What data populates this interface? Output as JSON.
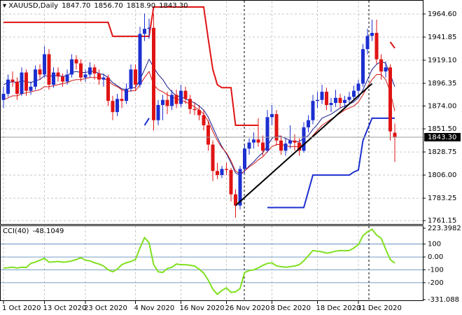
{
  "chart_data": {
    "type": "candlestick",
    "title": "XAUUSD,Daily",
    "header_values": [
      "1847.70",
      "1856.70",
      "1818.90",
      "1843.30"
    ],
    "categories": [
      "1 Oct 2020",
      null,
      null,
      null,
      null,
      null,
      null,
      null,
      null,
      "13 Oct 2020",
      null,
      null,
      null,
      null,
      null,
      null,
      null,
      null,
      "23 Oct 2020",
      null,
      null,
      null,
      null,
      null,
      null,
      null,
      null,
      null,
      null,
      "4 Nov 2020",
      null,
      null,
      null,
      null,
      null,
      null,
      null,
      null,
      null,
      "16 Nov 2020",
      null,
      null,
      null,
      null,
      null,
      null,
      null,
      null,
      null,
      "26 Nov 2020",
      null,
      null,
      null,
      null,
      null,
      null,
      null,
      null,
      null,
      "8 Dec 2020",
      null,
      null,
      null,
      null,
      null,
      null,
      null,
      null,
      null,
      "18 Dec 2020",
      null,
      null,
      null,
      null,
      null,
      null,
      null,
      null,
      "31 Dec 2020",
      null,
      null,
      null,
      null,
      null,
      null,
      null,
      null
    ],
    "ohlc": [
      [
        1880,
        1893,
        1872,
        1886
      ],
      [
        1886,
        1905,
        1883,
        1900
      ],
      [
        1900,
        1908,
        1893,
        1898
      ],
      [
        1898,
        1902,
        1880,
        1886
      ],
      [
        1886,
        1912,
        1884,
        1907
      ],
      [
        1907,
        1910,
        1884,
        1889
      ],
      [
        1889,
        1898,
        1885,
        1893
      ],
      [
        1893,
        1914,
        1890,
        1910
      ],
      [
        1910,
        1915,
        1900,
        1905
      ],
      [
        1905,
        1933,
        1902,
        1925
      ],
      [
        1925,
        1930,
        1890,
        1895
      ],
      [
        1895,
        1912,
        1892,
        1907
      ],
      [
        1907,
        1912,
        1898,
        1903
      ],
      [
        1903,
        1906,
        1893,
        1898
      ],
      [
        1898,
        1910,
        1895,
        1905
      ],
      [
        1905,
        1925,
        1902,
        1920
      ],
      [
        1920,
        1924,
        1910,
        1916
      ],
      [
        1916,
        1920,
        1898,
        1902
      ],
      [
        1902,
        1910,
        1898,
        1905
      ],
      [
        1905,
        1917,
        1902,
        1912
      ],
      [
        1912,
        1915,
        1900,
        1906
      ],
      [
        1906,
        1910,
        1895,
        1900
      ],
      [
        1900,
        1906,
        1893,
        1902
      ],
      [
        1902,
        1905,
        1874,
        1879
      ],
      [
        1879,
        1884,
        1860,
        1868
      ],
      [
        1868,
        1886,
        1864,
        1881
      ],
      [
        1881,
        1890,
        1872,
        1879
      ],
      [
        1879,
        1896,
        1876,
        1891
      ],
      [
        1891,
        1915,
        1888,
        1910
      ],
      [
        1910,
        1915,
        1890,
        1895
      ],
      [
        1895,
        1952,
        1892,
        1945
      ],
      [
        1945,
        1965,
        1938,
        1950
      ],
      [
        1950,
        1960,
        1940,
        1951
      ],
      [
        1951,
        1965,
        1850,
        1860
      ],
      [
        1860,
        1880,
        1855,
        1875
      ],
      [
        1875,
        1885,
        1860,
        1880
      ],
      [
        1880,
        1888,
        1866,
        1874
      ],
      [
        1874,
        1890,
        1870,
        1885
      ],
      [
        1885,
        1890,
        1872,
        1876
      ],
      [
        1876,
        1895,
        1873,
        1889
      ],
      [
        1889,
        1893,
        1876,
        1881
      ],
      [
        1881,
        1885,
        1866,
        1871
      ],
      [
        1871,
        1878,
        1865,
        1870
      ],
      [
        1870,
        1875,
        1860,
        1865
      ],
      [
        1865,
        1870,
        1850,
        1855
      ],
      [
        1855,
        1860,
        1830,
        1836
      ],
      [
        1836,
        1840,
        1800,
        1810
      ],
      [
        1810,
        1818,
        1802,
        1806
      ],
      [
        1806,
        1815,
        1803,
        1812
      ],
      [
        1812,
        1818,
        1806,
        1811
      ],
      [
        1811,
        1813,
        1780,
        1787
      ],
      [
        1787,
        1792,
        1764,
        1776
      ],
      [
        1776,
        1815,
        1772,
        1812
      ],
      [
        1812,
        1836,
        1808,
        1832
      ],
      [
        1832,
        1842,
        1826,
        1838
      ],
      [
        1838,
        1848,
        1832,
        1841
      ],
      [
        1841,
        1862,
        1834,
        1838
      ],
      [
        1838,
        1845,
        1825,
        1830
      ],
      [
        1830,
        1870,
        1828,
        1863
      ],
      [
        1863,
        1875,
        1855,
        1866
      ],
      [
        1866,
        1870,
        1835,
        1840
      ],
      [
        1840,
        1845,
        1826,
        1830
      ],
      [
        1830,
        1842,
        1825,
        1837
      ],
      [
        1837,
        1855,
        1832,
        1840
      ],
      [
        1840,
        1846,
        1830,
        1838
      ],
      [
        1838,
        1842,
        1825,
        1830
      ],
      [
        1830,
        1858,
        1828,
        1853
      ],
      [
        1853,
        1865,
        1848,
        1860
      ],
      [
        1860,
        1885,
        1856,
        1879
      ],
      [
        1879,
        1888,
        1872,
        1880
      ],
      [
        1880,
        1895,
        1876,
        1888
      ],
      [
        1888,
        1892,
        1870,
        1875
      ],
      [
        1875,
        1882,
        1868,
        1877
      ],
      [
        1877,
        1890,
        1873,
        1882
      ],
      [
        1882,
        1886,
        1872,
        1877
      ],
      [
        1877,
        1884,
        1872,
        1880
      ],
      [
        1880,
        1888,
        1876,
        1883
      ],
      [
        1883,
        1894,
        1880,
        1889
      ],
      [
        1889,
        1900,
        1885,
        1896
      ],
      [
        1896,
        1935,
        1893,
        1930
      ],
      [
        1930,
        1950,
        1925,
        1943
      ],
      [
        1943,
        1959,
        1938,
        1946
      ],
      [
        1946,
        1959,
        1915,
        1920
      ],
      [
        1920,
        1925,
        1900,
        1908
      ],
      [
        1908,
        1918,
        1902,
        1912
      ],
      [
        1912,
        1915,
        1840,
        1849
      ],
      [
        1847.7,
        1856.7,
        1818.9,
        1843.3
      ]
    ],
    "up_color": "#1c2fd0",
    "down_color": "#e01414",
    "ylim": [
      1757.8,
      1977.0
    ],
    "yticks": [
      {
        "value": 1964.6,
        "label": "1964.60"
      },
      {
        "value": 1941.85,
        "label": "1941.85"
      },
      {
        "value": 1919.1,
        "label": "1919.10"
      },
      {
        "value": 1896.35,
        "label": "1896.35"
      },
      {
        "value": 1874,
        "label": "1874.00"
      },
      {
        "value": 1851.5,
        "label": "1851.50"
      },
      {
        "value": 1828.75,
        "label": "1828.75"
      },
      {
        "value": 1806,
        "label": "1806.00"
      },
      {
        "value": 1783.25,
        "label": "1783.25"
      },
      {
        "value": 1761.15,
        "label": "1761.15"
      }
    ],
    "last_price": {
      "value": 1843.3,
      "label": "1843.30"
    },
    "grid": true,
    "lines": [
      {
        "color": "#1a1a8c",
        "width": 1,
        "values": [
          1895,
          1897,
          1898,
          1897,
          1899,
          1898,
          1897,
          1899,
          1900,
          1904,
          1903,
          1904,
          1904,
          1903,
          1904,
          1907,
          1908,
          1907,
          1907,
          1908,
          1908,
          1906,
          1905,
          1902,
          1897,
          1894,
          1891,
          1890,
          1892,
          1892,
          1900,
          1910,
          1920,
          1912,
          1905,
          1900,
          1893,
          1888,
          1884,
          1883,
          1881,
          1879,
          1877,
          1874,
          1870,
          1863,
          1853,
          1843,
          1834,
          1827,
          1818,
          1808,
          1806,
          1810,
          1815,
          1819,
          1824,
          1828,
          1835,
          1842,
          1845,
          1844,
          1842,
          1840,
          1839,
          1839,
          1842,
          1845,
          1851,
          1856,
          1862,
          1864,
          1866,
          1869,
          1872,
          1874,
          1876,
          1878,
          1882,
          1890,
          1900,
          1910,
          1915,
          1918,
          1916,
          1905,
          1893
        ]
      },
      {
        "color": "#d01818",
        "width": 1,
        "values": [
          1880,
          1882,
          1884,
          1884,
          1886,
          1887,
          1888,
          1889,
          1890,
          1893,
          1893,
          1894,
          1895,
          1896,
          1897,
          1899,
          1900,
          1900,
          1901,
          1902,
          1902,
          1902,
          1901,
          1899,
          1895,
          1893,
          1890,
          1888,
          1889,
          1889,
          1895,
          1902,
          1908,
          1895,
          1890,
          1888,
          1885,
          1883,
          1881,
          1880,
          1878,
          1876,
          1873,
          1870,
          1866,
          1859,
          1849,
          1840,
          1833,
          1828,
          1820,
          1810,
          1807,
          1810,
          1814,
          1817,
          1821,
          1824,
          1829,
          1834,
          1836,
          1836,
          1835,
          1834,
          1834,
          1834,
          1837,
          1840,
          1845,
          1850,
          1855,
          1858,
          1861,
          1864,
          1867,
          1870,
          1872,
          1874,
          1878,
          1885,
          1893,
          1900,
          1905,
          1905,
          1900,
          1888,
          1869
        ]
      },
      {
        "color": "#e01414",
        "width": 2,
        "values": [
          1956.4,
          1956.4,
          1956.4,
          1956.4,
          1956.4,
          1956.4,
          1956.4,
          1956.4,
          1956.4,
          1956.4,
          1956.4,
          1956.4,
          1956.4,
          1956.4,
          1956.4,
          1956.4,
          1956.4,
          1956.4,
          1956.4,
          1956.4,
          1956.4,
          1956.4,
          1956.4,
          1956.4,
          1942.6,
          1942.6,
          1942.6,
          1942.6,
          1942.6,
          1942.6,
          1942.6,
          1942.6,
          1942.6,
          1971.5,
          1971.5,
          1971.5,
          1971.5,
          1971.5,
          1971.5,
          1971.5,
          1971.5,
          1971.5,
          1971.5,
          1971.5,
          1971.5,
          1940,
          1910,
          1895,
          1892,
          1892,
          1892,
          1855,
          1855,
          1855,
          1855,
          1855,
          1855,
          null,
          null,
          null,
          null,
          null,
          null,
          null,
          null,
          null,
          null,
          null,
          null,
          null,
          null,
          null,
          null,
          null,
          null,
          null,
          null,
          null,
          null,
          null,
          null,
          null,
          null,
          null,
          null,
          1937,
          1931
        ]
      },
      {
        "color": "#1c2fd0",
        "width": 2,
        "values": [
          null,
          null,
          null,
          null,
          null,
          null,
          null,
          null,
          null,
          null,
          null,
          null,
          null,
          null,
          null,
          null,
          null,
          null,
          null,
          null,
          null,
          null,
          null,
          null,
          null,
          null,
          null,
          null,
          null,
          null,
          null,
          1855,
          1862,
          null,
          null,
          null,
          null,
          null,
          null,
          null,
          null,
          null,
          null,
          null,
          null,
          null,
          null,
          null,
          null,
          null,
          null,
          null,
          null,
          null,
          null,
          null,
          null,
          null,
          1774,
          1774,
          1774,
          1774,
          1774,
          1774,
          1774,
          1774,
          1774,
          1790,
          1806,
          1806,
          1806,
          1806,
          1806,
          1806,
          1806,
          1806,
          1806,
          1809,
          1811,
          1840,
          1851,
          1862,
          1862,
          1862,
          1862,
          1862,
          1862
        ]
      }
    ],
    "trendline": {
      "color": "#000000",
      "x": [
        51,
        81
      ],
      "values": [
        1776,
        1896
      ]
    },
    "indicator": {
      "title": "CCI(40)",
      "color": "#80e020",
      "level_color": "#4a7fb0",
      "values": [
        -86,
        -84,
        -80,
        -86,
        -80,
        -82,
        -50,
        -40,
        -25,
        -10,
        -40,
        -38,
        -35,
        -40,
        -38,
        -30,
        -20,
        -5,
        -25,
        -30,
        -45,
        -55,
        -70,
        -100,
        -115,
        -95,
        -60,
        -45,
        -35,
        -20,
        70,
        150,
        110,
        -60,
        -115,
        -120,
        -90,
        -80,
        -55,
        -60,
        -60,
        -65,
        -70,
        -95,
        -125,
        -180,
        -250,
        -290,
        -260,
        -240,
        -275,
        -270,
        -245,
        -120,
        -105,
        -100,
        -85,
        -65,
        -50,
        -45,
        -70,
        -75,
        -80,
        -75,
        -70,
        -60,
        -30,
        10,
        50,
        45,
        40,
        30,
        35,
        45,
        50,
        48,
        50,
        70,
        95,
        165,
        195,
        215,
        170,
        145,
        60,
        -20,
        -48.1049
      ],
      "ylim": [
        -331.088,
        223.3982
      ],
      "yticks": [
        223.3982,
        100,
        {
          "value": 0,
          "label": "0.00"
        },
        -100,
        -200,
        -331.088
      ]
    }
  }
}
